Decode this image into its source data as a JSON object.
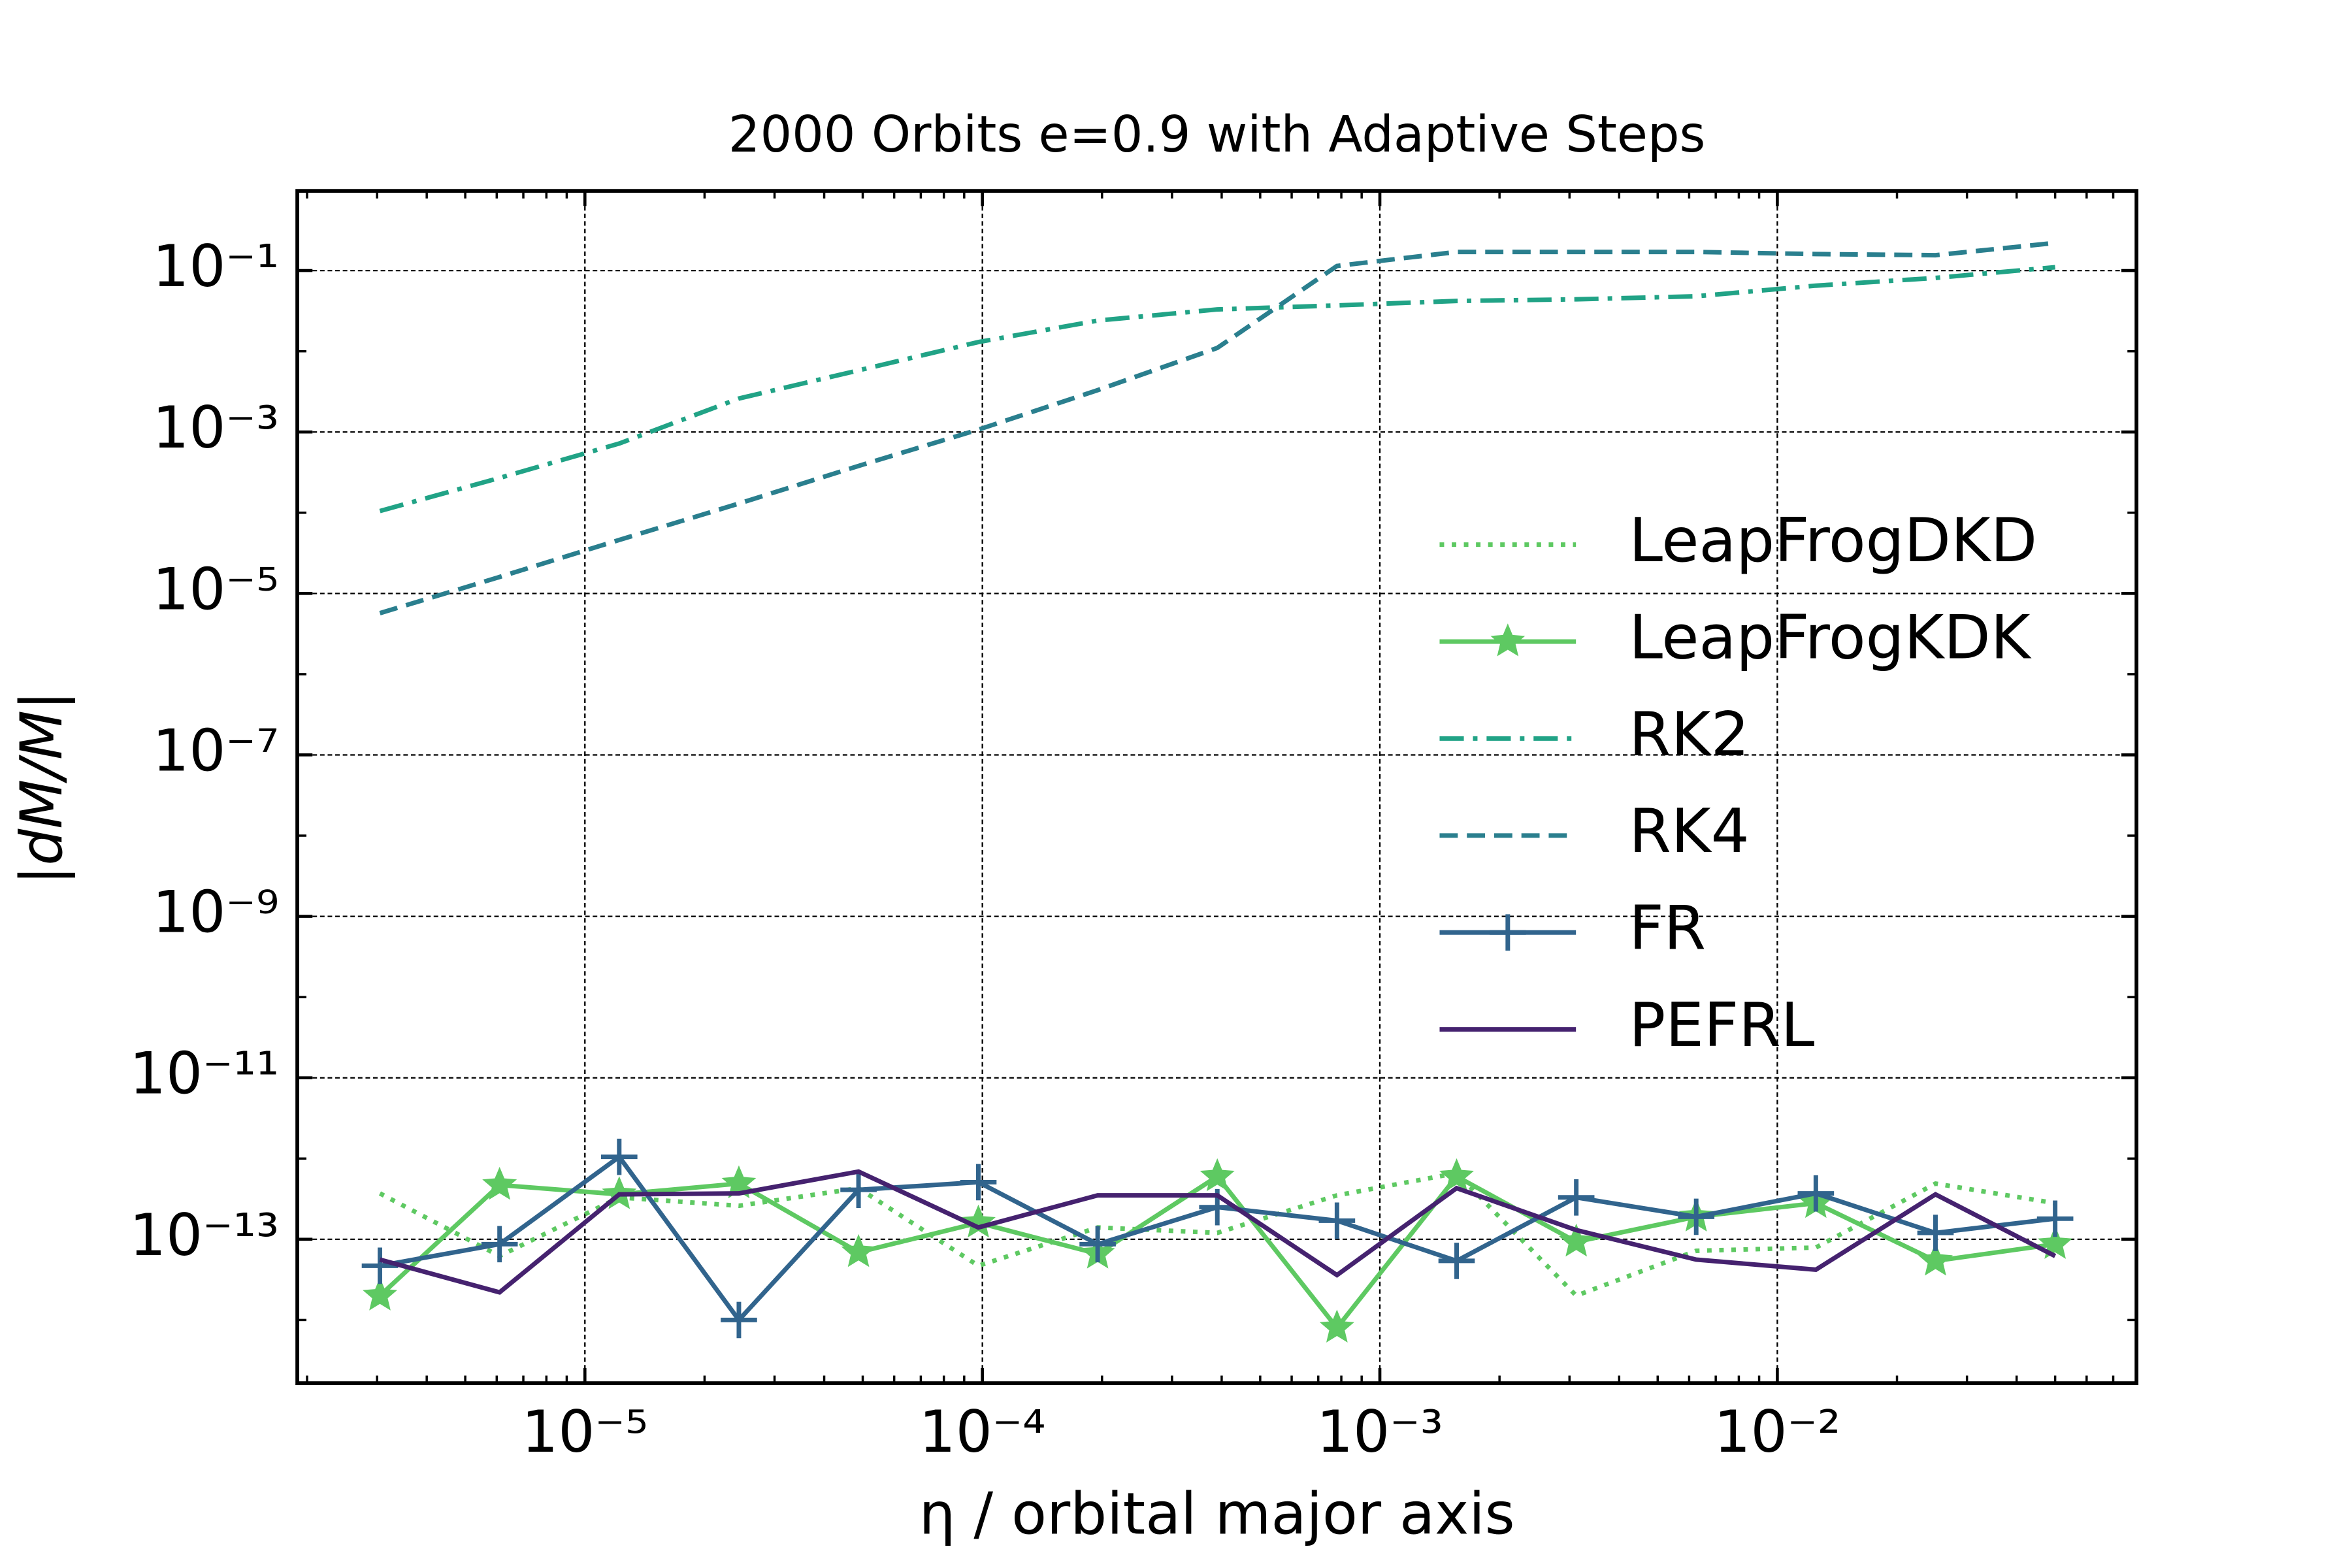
{
  "chart_data": {
    "type": "line",
    "title": "2000 Orbits e=0.9 with Adaptive Steps",
    "xlabel": "η / orbital major axis",
    "ylabel": "|dM/M|",
    "xscale": "log",
    "yscale": "log",
    "grid": true,
    "legend_loc": "center right",
    "x": [
      3.05e-06,
      6.1e-06,
      1.22e-05,
      2.44e-05,
      4.88e-05,
      9.77e-05,
      0.000195,
      0.00039,
      0.00078,
      0.00156,
      0.00312,
      0.00625,
      0.0125,
      0.025,
      0.05
    ],
    "xlim": [
      1.89e-06,
      0.0801
    ],
    "ylim": [
      1.65e-15,
      0.97
    ],
    "xticks": [
      {
        "value": 1e-05,
        "label": "10⁻⁵"
      },
      {
        "value": 0.0001,
        "label": "10⁻⁴"
      },
      {
        "value": 0.001,
        "label": "10⁻³"
      },
      {
        "value": 0.01,
        "label": "10⁻²"
      }
    ],
    "yticks": [
      {
        "value": 1e-13,
        "label": "10⁻¹³"
      },
      {
        "value": 1e-11,
        "label": "10⁻¹¹"
      },
      {
        "value": 1e-09,
        "label": "10⁻⁹"
      },
      {
        "value": 1e-07,
        "label": "10⁻⁷"
      },
      {
        "value": 1e-05,
        "label": "10⁻⁵"
      },
      {
        "value": 0.001,
        "label": "10⁻³"
      },
      {
        "value": 0.1,
        "label": "10⁻¹"
      }
    ],
    "series": [
      {
        "name": "LeapFrogDKD",
        "color": "#5ec962",
        "style": "dotted",
        "marker": "none",
        "values": [
          3.7e-13,
          6.2e-14,
          3.3e-13,
          2.6e-13,
          4.3e-13,
          4.7e-14,
          1.4e-13,
          1.2e-13,
          3.5e-13,
          6.6e-13,
          2e-14,
          7.2e-14,
          7.9e-14,
          4.9e-13,
          2.8e-13
        ]
      },
      {
        "name": "LeapFrogKDK",
        "color": "#5ec962",
        "style": "solid",
        "marker": "star",
        "values": [
          2e-14,
          4.7e-13,
          3.6e-13,
          4.9e-13,
          6.9e-14,
          1.6e-13,
          6.6e-14,
          6e-13,
          8e-15,
          6e-13,
          9.3e-14,
          1.9e-13,
          2.8e-13,
          5.4e-14,
          8.7e-14
        ]
      },
      {
        "name": "RK2",
        "color": "#21a386",
        "style": "dashdot",
        "marker": "none",
        "values": [
          0.000105,
          0.00027,
          0.00072,
          0.0026,
          0.0058,
          0.013,
          0.024,
          0.033,
          0.037,
          0.042,
          0.044,
          0.048,
          0.065,
          0.081,
          0.11
        ]
      },
      {
        "name": "RK4",
        "color": "#2a7f8e",
        "style": "dashed",
        "marker": "none",
        "values": [
          5.7e-06,
          1.6e-05,
          4.6e-05,
          0.00013,
          0.00038,
          0.00107,
          0.0033,
          0.011,
          0.114,
          0.17,
          0.17,
          0.17,
          0.16,
          0.155,
          0.22
        ]
      },
      {
        "name": "FR",
        "color": "#31648d",
        "style": "solid",
        "marker": "plus",
        "values": [
          4.7e-14,
          8.7e-14,
          1.05e-12,
          1e-14,
          4.1e-13,
          5.1e-13,
          8.7e-14,
          2.5e-13,
          1.7e-13,
          5.4e-14,
          3.3e-13,
          1.9e-13,
          3.7e-13,
          1.2e-13,
          1.8e-13
        ]
      },
      {
        "name": "PEFRL",
        "color": "#45226f",
        "style": "solid",
        "marker": "none",
        "values": [
          5.6e-14,
          2.2e-14,
          3.6e-13,
          3.7e-13,
          6.9e-13,
          1.4e-13,
          3.5e-13,
          3.5e-13,
          3.6e-14,
          4.3e-13,
          1.3e-13,
          5.6e-14,
          4.2e-14,
          3.6e-13,
          6.2e-14
        ]
      }
    ]
  }
}
